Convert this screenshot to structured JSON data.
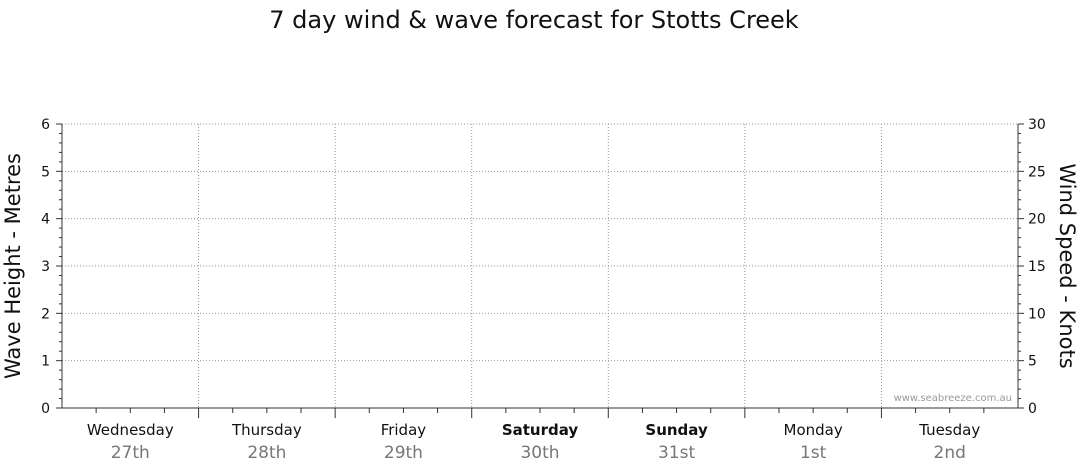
{
  "chart_data": {
    "type": "line",
    "title": "7 day wind & wave forecast for Stotts Creek",
    "ylabel_left": "Wave Height - Metres",
    "ylabel_right": "Wind Speed - Knots",
    "ylim_left": [
      0,
      6
    ],
    "yticks_left": [
      "0",
      "1",
      "2",
      "3",
      "4",
      "5",
      "6"
    ],
    "ylim_right": [
      0,
      30
    ],
    "yticks_right": [
      "0",
      "5",
      "10",
      "15",
      "20",
      "25",
      "30"
    ],
    "grid": true,
    "days": [
      {
        "day": "Wednesday",
        "date": "27th",
        "bold": false
      },
      {
        "day": "Thursday",
        "date": "28th",
        "bold": false
      },
      {
        "day": "Friday",
        "date": "29th",
        "bold": false
      },
      {
        "day": "Saturday",
        "date": "30th",
        "bold": true
      },
      {
        "day": "Sunday",
        "date": "31st",
        "bold": true
      },
      {
        "day": "Monday",
        "date": "1st",
        "bold": false
      },
      {
        "day": "Tuesday",
        "date": "2nd",
        "bold": false
      }
    ],
    "series": [],
    "watermark": "www.seabreeze.com.au"
  }
}
